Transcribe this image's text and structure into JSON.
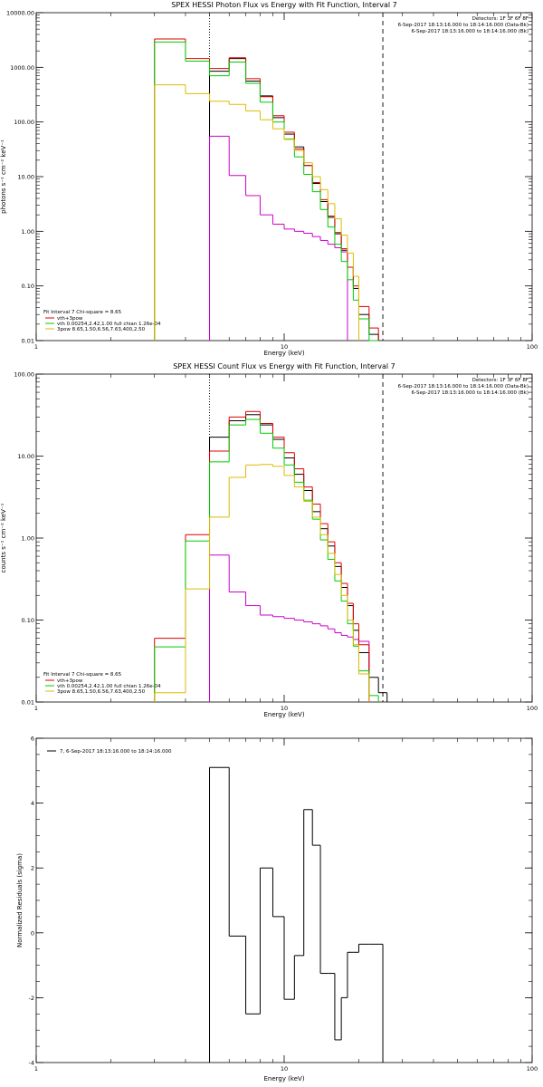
{
  "chart_data": [
    {
      "type": "line",
      "title": "SPEX HESSI Photon Flux vs Energy with Fit Function, Interval 7",
      "xlabel": "Energy (keV)",
      "ylabel": "photons s⁻¹ cm⁻² keV⁻¹",
      "xscale": "log",
      "yscale": "log",
      "xlim": [
        1,
        100
      ],
      "ylim": [
        0.01,
        10000
      ],
      "xticks": [
        {
          "v": 1,
          "label": "1"
        },
        {
          "v": 10,
          "label": "10"
        },
        {
          "v": 100,
          "label": "100"
        }
      ],
      "yticks": [
        {
          "v": 0.01,
          "label": "0.01"
        },
        {
          "v": 0.1,
          "label": "0.10"
        },
        {
          "v": 1,
          "label": "1.00"
        },
        {
          "v": 10,
          "label": "10.00"
        },
        {
          "v": 100,
          "label": "100.00"
        },
        {
          "v": 1000,
          "label": "1000.00"
        },
        {
          "v": 10000,
          "label": "10000.00"
        }
      ],
      "header_lines": [
        "Detectors: 1F 3F 6F 8F",
        "6-Sep-2017 18:13:16.000 to 18:14:16.000 (Data-Bk)",
        "6-Sep-2017 18:13:16.000 to 18:14:16.000 (Bk)"
      ],
      "header_colors": [
        "#000000",
        "#000000",
        "#cc00cc"
      ],
      "legend_title": "Fit Interval 7   Chi-square = 8.65",
      "legend": [
        {
          "label": "vth+3pow",
          "color": "#dd0000"
        },
        {
          "label": "vth 0.00254,2.42,1.00  full chian 1.26e-04",
          "color": "#00cc00"
        },
        {
          "label": "3pow 8.65,1.50,6.56,7.63,400,2.50",
          "color": "#ddbb00"
        }
      ],
      "vlines": [
        {
          "x": 5,
          "style": "dotted"
        },
        {
          "x": 25,
          "style": "dashed"
        }
      ],
      "edges": [
        3,
        4,
        5,
        6,
        7,
        8,
        9,
        10,
        11,
        12,
        13,
        14,
        15,
        16,
        17,
        18,
        19,
        20,
        22,
        24,
        26,
        28
      ],
      "series": [
        {
          "name": "Data-Bk",
          "color": "#000000",
          "start": 2,
          "values": [
            850,
            1450,
            560,
            300,
            120,
            60,
            35,
            16,
            7.5,
            3.5,
            1.8,
            0.9,
            0.45,
            0.22,
            0.09,
            0.03,
            0.013
          ]
        },
        {
          "name": "Bk",
          "color": "#cc00cc",
          "start": 2,
          "values": [
            55,
            10.5,
            4.5,
            2.0,
            1.35,
            1.1,
            1.0,
            0.92,
            0.8,
            0.68,
            0.58,
            0.5,
            0.42
          ]
        },
        {
          "name": "vth+3pow",
          "color": "#dd0000",
          "start": 0,
          "values": [
            3300,
            1450,
            950,
            1500,
            620,
            290,
            130,
            65,
            32,
            16,
            7.8,
            3.8,
            1.9,
            0.95,
            0.48,
            0.22,
            0.1,
            0.042,
            0.017
          ]
        },
        {
          "name": "vth",
          "color": "#00cc00",
          "start": 0,
          "values": [
            2900,
            1300,
            700,
            1250,
            510,
            230,
            100,
            49,
            23,
            11,
            5.3,
            2.5,
            1.2,
            0.58,
            0.28,
            0.13,
            0.055,
            0.025,
            0.01
          ]
        },
        {
          "name": "3pow",
          "color": "#ddbb00",
          "start": 0,
          "values": [
            480,
            330,
            240,
            210,
            160,
            110,
            75,
            48,
            30,
            18,
            10,
            5.8,
            3.2,
            1.7,
            0.85,
            0.4,
            0.15
          ]
        }
      ]
    },
    {
      "type": "line",
      "title": "SPEX HESSI Count Flux vs Energy with Fit Function, Interval 7",
      "xlabel": "Energy (keV)",
      "ylabel": "counts s⁻¹ cm⁻² keV⁻¹",
      "xscale": "log",
      "yscale": "log",
      "xlim": [
        1,
        100
      ],
      "ylim": [
        0.01,
        100
      ],
      "xticks": [
        {
          "v": 1,
          "label": "1"
        },
        {
          "v": 10,
          "label": "10"
        },
        {
          "v": 100,
          "label": "100"
        }
      ],
      "yticks": [
        {
          "v": 0.01,
          "label": "0.01"
        },
        {
          "v": 0.1,
          "label": "0.10"
        },
        {
          "v": 1,
          "label": "1.00"
        },
        {
          "v": 10,
          "label": "10.00"
        },
        {
          "v": 100,
          "label": "100.00"
        }
      ],
      "header_lines": [
        "Detectors: 1F 3F 6F 8F",
        "6-Sep-2017 18:13:16.000 to 18:14:16.000 (Data-Bk)",
        "6-Sep-2017 18:13:16.000 to 18:14:16.000 (Bk)"
      ],
      "header_colors": [
        "#000000",
        "#000000",
        "#cc00cc"
      ],
      "legend_title": "Fit Interval 7   Chi-square = 8.65",
      "legend": [
        {
          "label": "vth+3pow",
          "color": "#dd0000"
        },
        {
          "label": "vth 0.00254,2.42,1.00  full chian 1.26e-04",
          "color": "#00cc00"
        },
        {
          "label": "3pow 8.65,1.50,6.56,7.63,400,2.50",
          "color": "#ddbb00"
        }
      ],
      "vlines": [
        {
          "x": 5,
          "style": "dotted"
        },
        {
          "x": 25,
          "style": "dashed"
        }
      ],
      "edges": [
        3,
        4,
        5,
        6,
        7,
        8,
        9,
        10,
        11,
        12,
        13,
        14,
        15,
        16,
        17,
        18,
        19,
        20,
        22,
        24,
        26
      ],
      "series": [
        {
          "name": "Data-Bk",
          "color": "#000000",
          "start": 2,
          "values": [
            17,
            27,
            32,
            24,
            16,
            9.5,
            6.0,
            3.8,
            2.1,
            1.3,
            0.8,
            0.45,
            0.25,
            0.15,
            0.075,
            0.04,
            0.02,
            0.013
          ]
        },
        {
          "name": "Bk",
          "color": "#cc00cc",
          "start": 2,
          "values": [
            0.62,
            0.22,
            0.15,
            0.115,
            0.11,
            0.105,
            0.1,
            0.095,
            0.09,
            0.085,
            0.078,
            0.07,
            0.065,
            0.062,
            0.058,
            0.055
          ]
        },
        {
          "name": "vth+3pow",
          "color": "#dd0000",
          "start": 0,
          "values": [
            0.06,
            1.1,
            11.5,
            30,
            35,
            25,
            17,
            11,
            7.0,
            4.2,
            2.6,
            1.5,
            0.9,
            0.5,
            0.28,
            0.16,
            0.09,
            0.05
          ]
        },
        {
          "name": "vth",
          "color": "#00cc00",
          "start": 0,
          "values": [
            0.047,
            0.92,
            8.5,
            24,
            28,
            19,
            12.5,
            7.8,
            4.8,
            2.9,
            1.7,
            0.95,
            0.55,
            0.3,
            0.17,
            0.09,
            0.048,
            0.024,
            0.012
          ]
        },
        {
          "name": "3pow",
          "color": "#ddbb00",
          "start": 0,
          "values": [
            0.013,
            0.24,
            1.8,
            5.5,
            7.8,
            7.9,
            7.5,
            5.8,
            4.2,
            2.8,
            1.8,
            1.1,
            0.65,
            0.36,
            0.2,
            0.1,
            0.05,
            0.022
          ]
        }
      ]
    },
    {
      "type": "line",
      "title": "",
      "xlabel": "Energy (keV)",
      "ylabel": "Normalized Residuals (sigma)",
      "xscale": "log",
      "yscale": "linear",
      "xlim": [
        1,
        100
      ],
      "ylim": [
        -4,
        6
      ],
      "xticks": [
        {
          "v": 1,
          "label": "1"
        },
        {
          "v": 10,
          "label": "10"
        },
        {
          "v": 100,
          "label": "100"
        }
      ],
      "yticks": [
        {
          "v": -4,
          "label": "-4"
        },
        {
          "v": -2,
          "label": "-2"
        },
        {
          "v": 0,
          "label": "0"
        },
        {
          "v": 2,
          "label": "2"
        },
        {
          "v": 4,
          "label": "4"
        },
        {
          "v": 6,
          "label": "6"
        }
      ],
      "legend_title": "",
      "legend": [
        {
          "label": "7,  6-Sep-2017 18:13:16.000 to 18:14:16.000",
          "color": "#000000"
        }
      ],
      "edges": [
        5,
        6,
        7,
        8,
        9,
        10,
        11,
        12,
        13,
        14,
        15,
        16,
        17,
        18,
        19,
        20,
        22,
        24,
        25
      ],
      "residuals": [
        5.1,
        -0.1,
        -2.5,
        2.0,
        0.5,
        -2.05,
        -0.7,
        3.8,
        2.7,
        -1.25,
        -1.25,
        -3.3,
        -2.0,
        -0.6,
        -0.6,
        -0.35,
        -0.35,
        -0.35
      ]
    }
  ]
}
